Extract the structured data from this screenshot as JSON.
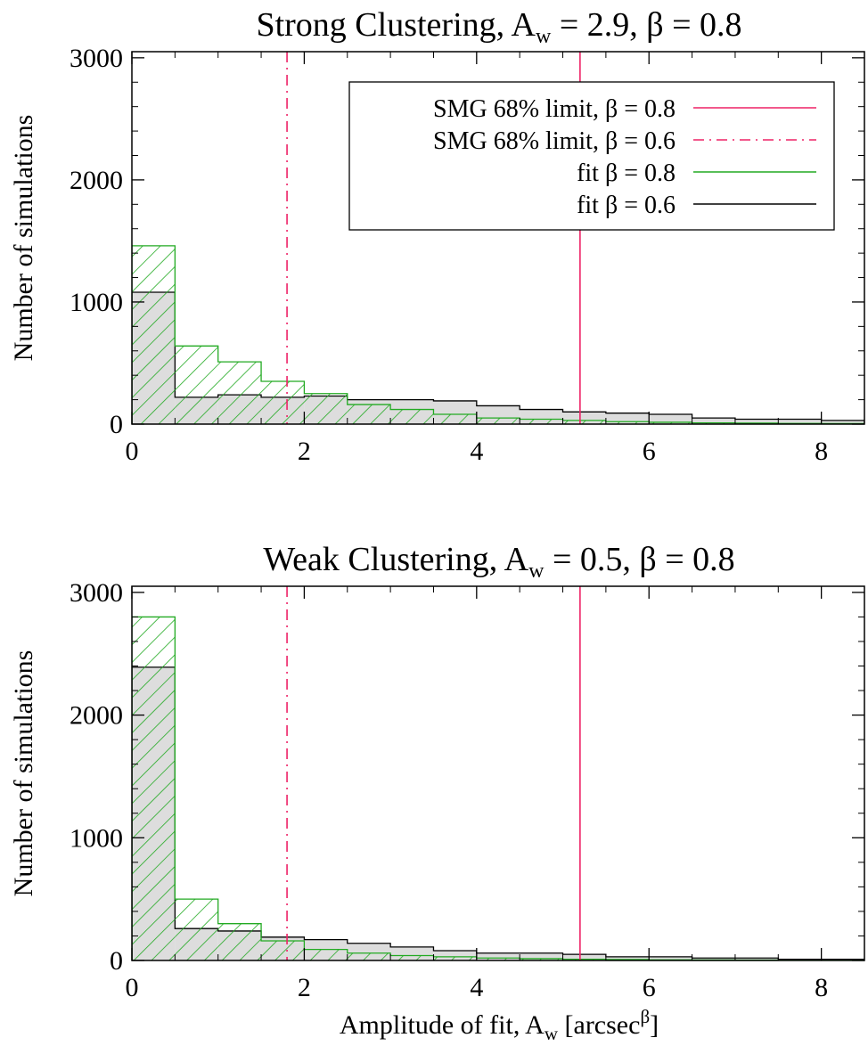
{
  "chart_data": [
    {
      "type": "bar",
      "title": {
        "prefix": "Strong Clustering, A",
        "sub": "w",
        "suffix": " = 2.9, β = 0.8"
      },
      "ylabel": "Number of simulations",
      "xlabel": null,
      "xlim": [
        0,
        8.5
      ],
      "ylim": [
        0,
        3050
      ],
      "xticks": [
        0,
        2,
        4,
        6,
        8
      ],
      "yticks": [
        0,
        1000,
        2000,
        3000
      ],
      "bin_edges": [
        0,
        0.5,
        1,
        1.5,
        2,
        2.5,
        3,
        3.5,
        4,
        4.5,
        5,
        5.5,
        6,
        6.5,
        7,
        7.5,
        8,
        8.5
      ],
      "series": [
        {
          "name": "fit β = 0.8",
          "color": "#22aa22",
          "fill": "hatch",
          "values": [
            1460,
            640,
            510,
            350,
            250,
            160,
            120,
            80,
            50,
            40,
            30,
            20,
            15,
            10,
            8,
            5,
            4
          ]
        },
        {
          "name": "fit β = 0.6",
          "color": "#000000",
          "fill": "#dddddd",
          "values": [
            1080,
            220,
            240,
            220,
            230,
            200,
            200,
            190,
            150,
            120,
            100,
            90,
            80,
            50,
            40,
            40,
            30
          ]
        }
      ],
      "vlines": [
        {
          "name": "SMG 68% limit, β = 0.8",
          "x": 5.2,
          "color": "#ee2266",
          "style": "solid"
        },
        {
          "name": "SMG 68% limit, β = 0.6",
          "x": 1.8,
          "color": "#ee2266",
          "style": "dashdot"
        }
      ],
      "legend": {
        "placement": "top-right",
        "entries": [
          {
            "label": "SMG 68% limit, β = 0.8",
            "color": "#ee2266",
            "style": "solid"
          },
          {
            "label": "SMG 68% limit, β = 0.6",
            "color": "#ee2266",
            "style": "dashdot"
          },
          {
            "label": "fit β = 0.8",
            "color": "#22aa22",
            "style": "solid"
          },
          {
            "label": "fit β = 0.6",
            "color": "#000000",
            "style": "solid"
          }
        ]
      }
    },
    {
      "type": "bar",
      "title": {
        "prefix": "Weak Clustering, A",
        "sub": "w",
        "suffix": " = 0.5, β = 0.8"
      },
      "ylabel": "Number of simulations",
      "xlabel": {
        "prefix": "Amplitude of fit, A",
        "sub": "w",
        "mid": " [arcsec",
        "sup": "β",
        "suffix": "]"
      },
      "xlim": [
        0,
        8.5
      ],
      "ylim": [
        0,
        3050
      ],
      "xticks": [
        0,
        2,
        4,
        6,
        8
      ],
      "yticks": [
        0,
        1000,
        2000,
        3000
      ],
      "bin_edges": [
        0,
        0.5,
        1,
        1.5,
        2,
        2.5,
        3,
        3.5,
        4,
        4.5,
        5,
        5.5,
        6,
        6.5,
        7,
        7.5,
        8,
        8.5
      ],
      "series": [
        {
          "name": "fit β = 0.8",
          "color": "#22aa22",
          "fill": "hatch",
          "values": [
            2800,
            500,
            300,
            160,
            90,
            60,
            40,
            30,
            20,
            15,
            10,
            8,
            5,
            4,
            3,
            2,
            2
          ]
        },
        {
          "name": "fit β = 0.6",
          "color": "#000000",
          "fill": "#dddddd",
          "values": [
            2390,
            260,
            240,
            190,
            170,
            140,
            110,
            80,
            60,
            60,
            50,
            30,
            30,
            20,
            20,
            10,
            10
          ]
        }
      ],
      "vlines": [
        {
          "name": "SMG 68% limit, β = 0.8",
          "x": 5.2,
          "color": "#ee2266",
          "style": "solid"
        },
        {
          "name": "SMG 68% limit, β = 0.6",
          "x": 1.8,
          "color": "#ee2266",
          "style": "dashdot"
        }
      ],
      "legend": null
    }
  ]
}
